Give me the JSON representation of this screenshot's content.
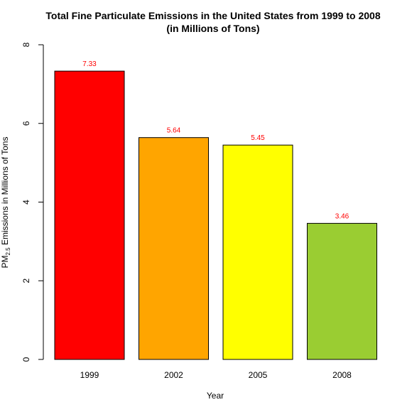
{
  "chart_data": {
    "type": "bar",
    "title_line1": "Total Fine Particulate Emissions in the United States from 1999 to 2008",
    "title_line2": "(in Millions of Tons)",
    "xlabel": "Year",
    "ylabel_prefix": "PM",
    "ylabel_subscript": "2.5",
    "ylabel_suffix": " Emissions in Millions of Tons",
    "categories": [
      "1999",
      "2002",
      "2005",
      "2008"
    ],
    "values": [
      7.33,
      5.64,
      5.45,
      3.46
    ],
    "data_labels": [
      "7.33",
      "5.64",
      "5.45",
      "3.46"
    ],
    "colors": [
      "#ff0000",
      "#ffa500",
      "#ffff00",
      "#9acd32"
    ],
    "data_label_color": "#ff0000",
    "ylim": [
      0,
      8
    ],
    "yticks": [
      0,
      2,
      4,
      6,
      8
    ],
    "ytick_labels": [
      "0",
      "2",
      "4",
      "6",
      "8"
    ],
    "grid": false,
    "legend": "none"
  }
}
